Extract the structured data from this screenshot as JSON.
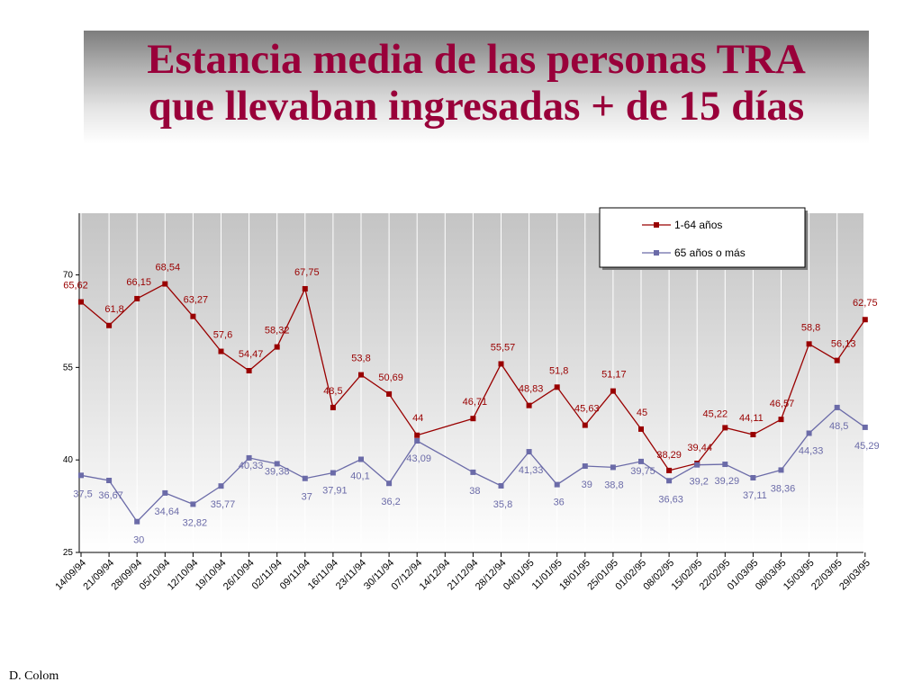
{
  "title_lines": [
    "Estancia media de las personas TRA",
    "que llevaban ingresadas + de 15 días"
  ],
  "footer": "D. Colom",
  "colors": {
    "series1": "#990000",
    "series2": "#6b6ba8",
    "title": "#99003a"
  },
  "chart_data": {
    "type": "line",
    "title": "",
    "xlabel": "",
    "ylabel": "",
    "ylim": [
      25,
      80
    ],
    "yticks": [
      25,
      40,
      55,
      70
    ],
    "grid": "vertical",
    "legend_position": "top-right",
    "categories": [
      "14/09/94",
      "21/09/94",
      "28/09/94",
      "05/10/94",
      "12/10/94",
      "19/10/94",
      "26/10/94",
      "02/11/94",
      "09/11/94",
      "16/11/94",
      "23/11/94",
      "30/11/94",
      "07/12/94",
      "14/12/94",
      "21/12/94",
      "28/12/94",
      "04/01/95",
      "11/01/95",
      "18/01/95",
      "25/01/95",
      "01/02/95",
      "08/02/95",
      "15/02/95",
      "22/02/95",
      "01/03/95",
      "08/03/95",
      "15/03/95",
      "22/03/95",
      "29/03/95"
    ],
    "series": [
      {
        "name": "1-64 años",
        "color": "#990000",
        "points": [
          {
            "x": "14/09/94",
            "y": 65.62,
            "label": "65,62"
          },
          {
            "x": "21/09/94",
            "y": 61.8,
            "label": "61,8"
          },
          {
            "x": "28/09/94",
            "y": 66.15,
            "label": "66,15"
          },
          {
            "x": "05/10/94",
            "y": 68.54,
            "label": "68,54"
          },
          {
            "x": "12/10/94",
            "y": 63.27,
            "label": "63,27"
          },
          {
            "x": "19/10/94",
            "y": 57.6,
            "label": "57,6"
          },
          {
            "x": "26/10/94",
            "y": 54.47,
            "label": "54,47"
          },
          {
            "x": "02/11/94",
            "y": 58.32,
            "label": "58,32"
          },
          {
            "x": "09/11/94",
            "y": 67.75,
            "label": "67,75"
          },
          {
            "x": "16/11/94",
            "y": 48.5,
            "label": "48,5"
          },
          {
            "x": "23/11/94",
            "y": 53.8,
            "label": "53,8"
          },
          {
            "x": "30/11/94",
            "y": 50.69,
            "label": "50,69"
          },
          {
            "x": "07/12/94",
            "y": 44,
            "label": "44"
          },
          {
            "x": "21/12/94",
            "y": 46.71,
            "label": "46,71"
          },
          {
            "x": "28/12/94",
            "y": 55.57,
            "label": "55,57"
          },
          {
            "x": "04/01/95",
            "y": 48.83,
            "label": "48,83"
          },
          {
            "x": "11/01/95",
            "y": 51.8,
            "label": "51,8"
          },
          {
            "x": "18/01/95",
            "y": 45.63,
            "label": "45,63"
          },
          {
            "x": "25/01/95",
            "y": 51.17,
            "label": "51,17"
          },
          {
            "x": "01/02/95",
            "y": 45,
            "label": "45"
          },
          {
            "x": "08/02/95",
            "y": 38.29,
            "label": "38,29"
          },
          {
            "x": "15/02/95",
            "y": 39.44,
            "label": "39,44"
          },
          {
            "x": "22/02/95",
            "y": 45.22,
            "label": "45,22"
          },
          {
            "x": "01/03/95",
            "y": 44.11,
            "label": "44,11"
          },
          {
            "x": "08/03/95",
            "y": 46.57,
            "label": "46,57"
          },
          {
            "x": "15/03/95",
            "y": 58.8,
            "label": "58,8"
          },
          {
            "x": "22/03/95",
            "y": 56.13,
            "label": "56,13"
          },
          {
            "x": "29/03/95",
            "y": 62.75,
            "label": "62,75"
          }
        ]
      },
      {
        "name": "65 años o más",
        "color": "#6b6ba8",
        "points": [
          {
            "x": "14/09/94",
            "y": 37.5,
            "label": "37,5"
          },
          {
            "x": "21/09/94",
            "y": 36.67,
            "label": "36,67"
          },
          {
            "x": "28/09/94",
            "y": 30,
            "label": "30"
          },
          {
            "x": "05/10/94",
            "y": 34.64,
            "label": "34,64"
          },
          {
            "x": "12/10/94",
            "y": 32.82,
            "label": "32,82"
          },
          {
            "x": "19/10/94",
            "y": 35.77,
            "label": "35,77"
          },
          {
            "x": "26/10/94",
            "y": 40.33,
            "label": "40,33"
          },
          {
            "x": "02/11/94",
            "y": 39.38,
            "label": "39,38"
          },
          {
            "x": "09/11/94",
            "y": 37,
            "label": "37"
          },
          {
            "x": "16/11/94",
            "y": 37.91,
            "label": "37,91"
          },
          {
            "x": "23/11/94",
            "y": 40.1,
            "label": "40,1"
          },
          {
            "x": "30/11/94",
            "y": 36.2,
            "label": "36,2"
          },
          {
            "x": "07/12/94",
            "y": 43.09,
            "label": "43,09"
          },
          {
            "x": "21/12/94",
            "y": 38,
            "label": "38"
          },
          {
            "x": "28/12/94",
            "y": 35.8,
            "label": "35,8"
          },
          {
            "x": "04/01/95",
            "y": 41.33,
            "label": "41,33"
          },
          {
            "x": "11/01/95",
            "y": 36,
            "label": "36"
          },
          {
            "x": "18/01/95",
            "y": 39,
            "label": "39"
          },
          {
            "x": "25/01/95",
            "y": 38.8,
            "label": "38,8"
          },
          {
            "x": "01/02/95",
            "y": 39.75,
            "label": "39,75"
          },
          {
            "x": "08/02/95",
            "y": 36.63,
            "label": "36,63"
          },
          {
            "x": "15/02/95",
            "y": 39.2,
            "label": "39,2"
          },
          {
            "x": "22/02/95",
            "y": 39.29,
            "label": "39,29"
          },
          {
            "x": "01/03/95",
            "y": 37.11,
            "label": "37,11"
          },
          {
            "x": "08/03/95",
            "y": 38.36,
            "label": "38,36"
          },
          {
            "x": "15/03/95",
            "y": 44.33,
            "label": "44,33"
          },
          {
            "x": "22/03/95",
            "y": 48.5,
            "label": "48,5"
          },
          {
            "x": "29/03/95",
            "y": 45.29,
            "label": "45,29"
          }
        ]
      }
    ]
  }
}
